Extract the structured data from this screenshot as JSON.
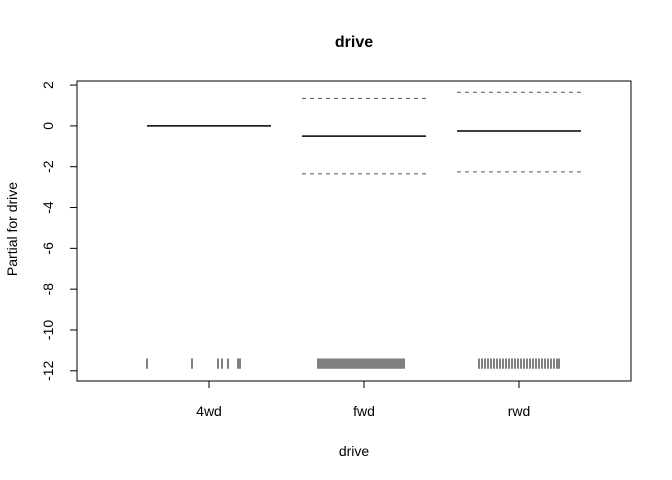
{
  "chart_data": {
    "type": "termplot",
    "title": "drive",
    "xlabel": "drive",
    "ylabel": "Partial for drive",
    "ylim": [
      -12.5,
      2.2
    ],
    "yticks": [
      2,
      0,
      -2,
      -4,
      -6,
      -8,
      -10,
      -12
    ],
    "ytick_labels": [
      "2",
      "0",
      "-2",
      "-4",
      "-6",
      "-8",
      "-10",
      "-12"
    ],
    "categories": [
      "4wd",
      "fwd",
      "rwd"
    ],
    "series": [
      {
        "name": "",
        "values": [
          0.0,
          -0.5,
          -0.25
        ]
      },
      {
        "name": "",
        "values": [
          0.0,
          1.35,
          1.65
        ]
      },
      {
        "name": "",
        "values": [
          0.0,
          -2.35,
          -2.25
        ]
      }
    ],
    "rug_y": [
      -11.4,
      -11.9
    ],
    "rug": [
      [
        -0.62,
        -0.17,
        0.09,
        0.13,
        0.19,
        0.29,
        0.31
      ],
      [
        -0.46,
        -0.44,
        -0.42,
        -0.4,
        -0.38,
        -0.36,
        -0.34,
        -0.32,
        -0.3,
        -0.28,
        -0.26,
        -0.24,
        -0.22,
        -0.2,
        -0.18,
        -0.16,
        -0.14,
        -0.12,
        -0.1,
        -0.08,
        -0.06,
        -0.04,
        -0.02,
        0.0,
        0.02,
        0.04,
        0.06,
        0.08,
        0.1,
        0.12,
        0.14,
        0.16,
        0.18,
        0.2,
        0.22,
        0.24,
        0.26,
        0.28,
        0.3,
        0.32,
        0.34,
        0.36,
        0.38,
        0.4
      ],
      [
        -0.4,
        -0.37,
        -0.34,
        -0.31,
        -0.28,
        -0.25,
        -0.22,
        -0.19,
        -0.16,
        -0.13,
        -0.1,
        -0.07,
        -0.04,
        -0.01,
        0.02,
        0.05,
        0.08,
        0.11,
        0.14,
        0.17,
        0.2,
        0.23,
        0.26,
        0.29,
        0.32,
        0.35,
        0.38,
        0.4
      ]
    ],
    "line_color": "#000000",
    "band_color": "#555555"
  }
}
